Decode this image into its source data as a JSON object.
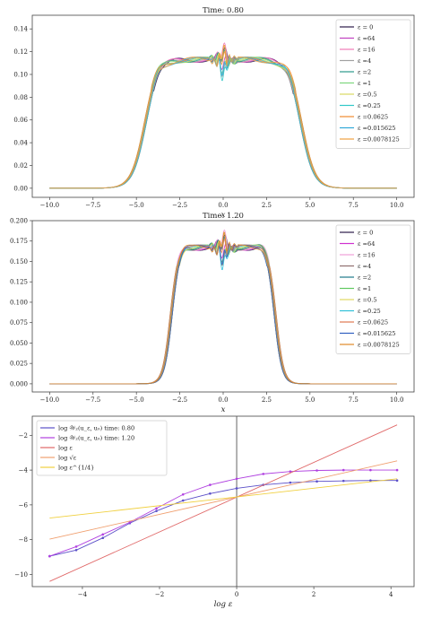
{
  "chart_data": [
    {
      "type": "line",
      "title": "Time: 0.80",
      "xlabel": "x",
      "ylabel": "",
      "xlim": [
        -11,
        11
      ],
      "ylim": [
        -0.008,
        0.152
      ],
      "xticks": [
        -10.0,
        -7.5,
        -5.0,
        -2.5,
        0.0,
        2.5,
        5.0,
        7.5,
        10.0
      ],
      "xtick_labels": [
        "−10.0",
        "−7.5",
        "−5.0",
        "−2.5",
        "0.0",
        "2.5",
        "5.0",
        "7.5",
        "10.0"
      ],
      "yticks": [
        0.0,
        0.02,
        0.04,
        0.06,
        0.08,
        0.1,
        0.12,
        0.14
      ],
      "ytick_labels": [
        "0.00",
        "0.02",
        "0.04",
        "0.06",
        "0.08",
        "0.10",
        "0.12",
        "0.14"
      ],
      "grid": false,
      "legend_position": "top-right",
      "plateau": 0.113,
      "edge_center": 4.5,
      "edge_width": 0.38,
      "series": [
        {
          "name": "ε = 0",
          "color": "#2b1a4a"
        },
        {
          "name": "ε =64",
          "color": "#c040c0"
        },
        {
          "name": "ε =16",
          "color": "#f07ab8"
        },
        {
          "name": "ε =4",
          "color": "#a0a0a0"
        },
        {
          "name": "ε =2",
          "color": "#2a9a8a"
        },
        {
          "name": "ε =1",
          "color": "#7dd67d"
        },
        {
          "name": "ε =0.5",
          "color": "#d8d860"
        },
        {
          "name": "ε =0.25",
          "color": "#30c8c8"
        },
        {
          "name": "ε =0.0625",
          "color": "#f08a30"
        },
        {
          "name": "ε =0.015625",
          "color": "#30a8d8"
        },
        {
          "name": "ε =0.0078125",
          "color": "#f0a040"
        }
      ]
    },
    {
      "type": "line",
      "title": "Time: 1.20",
      "xlabel": "x",
      "ylabel": "",
      "xlim": [
        -11,
        11
      ],
      "ylim": [
        -0.01,
        0.2
      ],
      "xticks": [
        -10.0,
        -7.5,
        -5.0,
        -2.5,
        0.0,
        2.5,
        5.0,
        7.5,
        10.0
      ],
      "xtick_labels": [
        "−10.0",
        "−7.5",
        "−5.0",
        "−2.5",
        "0.0",
        "2.5",
        "5.0",
        "7.5",
        "10.0"
      ],
      "yticks": [
        0.0,
        0.025,
        0.05,
        0.075,
        0.1,
        0.125,
        0.15,
        0.175,
        0.2
      ],
      "ytick_labels": [
        "0.000",
        "0.025",
        "0.050",
        "0.075",
        "0.100",
        "0.125",
        "0.150",
        "0.175",
        "0.200"
      ],
      "grid": false,
      "legend_position": "top-right",
      "plateau": 0.167,
      "edge_center": 3.0,
      "edge_width": 0.22,
      "series": [
        {
          "name": "ε = 0",
          "color": "#2b1a4a"
        },
        {
          "name": "ε =64",
          "color": "#d030d0"
        },
        {
          "name": "ε =16",
          "color": "#f0a0d8"
        },
        {
          "name": "ε =4",
          "color": "#907070"
        },
        {
          "name": "ε =2",
          "color": "#1f7a8a"
        },
        {
          "name": "ε =1",
          "color": "#60c860"
        },
        {
          "name": "ε =0.5",
          "color": "#e0d860"
        },
        {
          "name": "ε =0.25",
          "color": "#30c0d8"
        },
        {
          "name": "ε =0.0625",
          "color": "#e07850"
        },
        {
          "name": "ε =0.015625",
          "color": "#3060c0"
        },
        {
          "name": "ε =0.0078125",
          "color": "#e08828"
        }
      ]
    },
    {
      "type": "line",
      "title": "",
      "xlabel": "log ε",
      "ylabel": "",
      "xlim": [
        -5.3,
        4.6
      ],
      "ylim": [
        -10.7,
        -0.9
      ],
      "xticks": [
        -4,
        -2,
        0,
        2,
        4
      ],
      "xtick_labels": [
        "−4",
        "−2",
        "0",
        "2",
        "4"
      ],
      "yticks": [
        -10,
        -8,
        -6,
        -4,
        -2
      ],
      "ytick_labels": [
        "−10",
        "−8",
        "−6",
        "−4",
        "−2"
      ],
      "vline": 0,
      "grid": false,
      "legend_position": "top-left",
      "series": [
        {
          "name": "log 𝒲₂(u_ε, u₀) time: 0.80",
          "color": "#5b4fc8",
          "marker": "dot",
          "x": [
            -4.85,
            -4.16,
            -3.47,
            -2.77,
            -2.08,
            -1.39,
            -0.69,
            0.0,
            0.69,
            1.39,
            2.08,
            2.77,
            3.47,
            4.16
          ],
          "y": [
            -8.95,
            -8.6,
            -7.9,
            -7.05,
            -6.35,
            -5.75,
            -5.35,
            -5.05,
            -4.85,
            -4.72,
            -4.65,
            -4.62,
            -4.6,
            -4.6
          ]
        },
        {
          "name": "log 𝒲₂(u_ε, u₀) time: 1.20",
          "color": "#b040e0",
          "marker": "dot",
          "x": [
            -4.85,
            -4.16,
            -3.47,
            -2.77,
            -2.08,
            -1.39,
            -0.69,
            0.0,
            0.69,
            1.39,
            2.08,
            2.77,
            3.47,
            4.16
          ],
          "y": [
            -8.95,
            -8.4,
            -7.7,
            -7.0,
            -6.2,
            -5.4,
            -4.85,
            -4.5,
            -4.22,
            -4.08,
            -4.02,
            -4.0,
            -4.0,
            -4.0
          ]
        },
        {
          "name": "log ε",
          "color": "#e06868",
          "x": [
            -4.85,
            4.16
          ],
          "y": [
            -10.4,
            -1.4
          ]
        },
        {
          "name": "log √ε",
          "color": "#f0a070",
          "x": [
            -4.85,
            4.16
          ],
          "y": [
            -7.97,
            -3.47
          ]
        },
        {
          "name": "log ε^{1/4}",
          "color": "#f0d040",
          "x": [
            -4.85,
            4.16
          ],
          "y": [
            -6.76,
            -4.5
          ]
        }
      ]
    }
  ]
}
